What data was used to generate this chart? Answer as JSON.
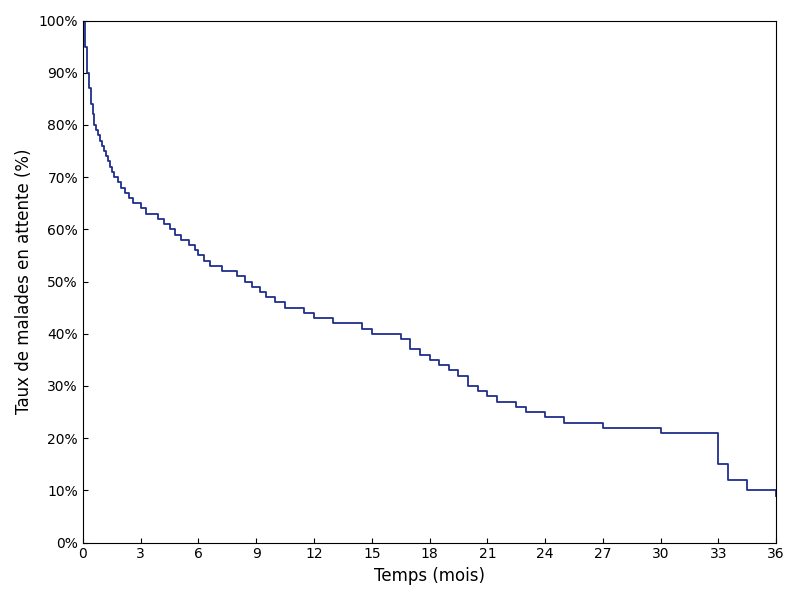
{
  "title": "",
  "xlabel": "Temps (mois)",
  "ylabel": "Taux de malades en attente (%)",
  "line_color": "#1f2e8c",
  "line_width": 1.3,
  "xlim": [
    0,
    36
  ],
  "ylim": [
    0,
    1.0
  ],
  "xticks": [
    0,
    3,
    6,
    9,
    12,
    15,
    18,
    21,
    24,
    27,
    30,
    33,
    36
  ],
  "yticks": [
    0,
    0.1,
    0.2,
    0.3,
    0.4,
    0.5,
    0.6,
    0.7,
    0.8,
    0.9,
    1.0
  ],
  "background_color": "#ffffff",
  "step_x": [
    0.0,
    0.1,
    0.2,
    0.3,
    0.4,
    0.5,
    0.6,
    0.7,
    0.8,
    0.9,
    1.0,
    1.1,
    1.2,
    1.3,
    1.4,
    1.5,
    1.6,
    1.7,
    1.8,
    1.9,
    2.0,
    2.2,
    2.4,
    2.6,
    2.8,
    3.0,
    3.3,
    3.6,
    3.9,
    4.2,
    4.5,
    4.8,
    5.1,
    5.5,
    5.8,
    6.0,
    6.3,
    6.6,
    6.9,
    7.2,
    7.6,
    8.0,
    8.4,
    8.8,
    9.2,
    9.5,
    10.0,
    10.5,
    11.0,
    11.5,
    12.0,
    12.5,
    13.0,
    13.5,
    14.0,
    14.5,
    14.8,
    15.0,
    15.3,
    15.6,
    16.0,
    16.5,
    17.0,
    17.5,
    18.0,
    18.5,
    19.0,
    19.5,
    20.0,
    20.5,
    21.0,
    21.5,
    22.0,
    22.5,
    23.0,
    23.5,
    24.0,
    24.5,
    25.0,
    26.0,
    27.0,
    28.0,
    29.0,
    30.0,
    32.5,
    33.0,
    33.5,
    34.5,
    36.0
  ],
  "step_y": [
    1.0,
    0.95,
    0.9,
    0.87,
    0.84,
    0.82,
    0.8,
    0.79,
    0.78,
    0.77,
    0.76,
    0.75,
    0.74,
    0.73,
    0.72,
    0.71,
    0.7,
    0.7,
    0.69,
    0.69,
    0.68,
    0.67,
    0.66,
    0.65,
    0.65,
    0.64,
    0.63,
    0.63,
    0.62,
    0.61,
    0.6,
    0.59,
    0.58,
    0.57,
    0.56,
    0.55,
    0.54,
    0.53,
    0.53,
    0.52,
    0.52,
    0.51,
    0.5,
    0.49,
    0.48,
    0.47,
    0.46,
    0.45,
    0.45,
    0.44,
    0.43,
    0.43,
    0.42,
    0.42,
    0.42,
    0.41,
    0.41,
    0.4,
    0.4,
    0.4,
    0.4,
    0.39,
    0.37,
    0.36,
    0.35,
    0.34,
    0.33,
    0.32,
    0.3,
    0.29,
    0.28,
    0.27,
    0.27,
    0.26,
    0.25,
    0.25,
    0.24,
    0.24,
    0.23,
    0.23,
    0.22,
    0.22,
    0.22,
    0.21,
    0.21,
    0.15,
    0.12,
    0.1,
    0.09
  ]
}
